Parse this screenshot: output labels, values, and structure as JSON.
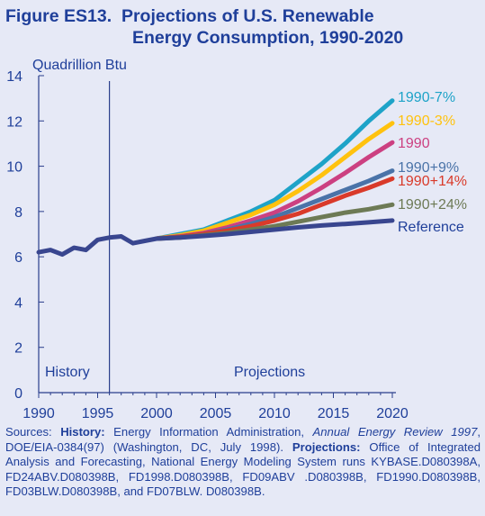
{
  "figure": {
    "title_line1": "Figure ES13.  Projections of U.S. Renewable",
    "title_line2": "Energy Consumption, 1990-2020"
  },
  "colors": {
    "background": "#e6e9f6",
    "axis": "#2a3e8c",
    "text": "#1f3f9a"
  },
  "chart_data": {
    "type": "line",
    "ylabel": "Quadrillion Btu",
    "xlim": [
      1990,
      2020
    ],
    "ylim": [
      0,
      14
    ],
    "x_ticks": [
      1990,
      1995,
      2000,
      2005,
      2010,
      2015,
      2020
    ],
    "y_ticks": [
      0,
      2,
      4,
      6,
      8,
      10,
      12,
      14
    ],
    "grid": false,
    "divider_year": 1996,
    "region_labels": {
      "history": "History",
      "projections": "Projections"
    },
    "history": {
      "x": [
        1990,
        1991,
        1992,
        1993,
        1994,
        1995,
        1996,
        1997,
        1998,
        1999,
        2000
      ],
      "y": [
        6.2,
        6.3,
        6.1,
        6.4,
        6.3,
        6.75,
        6.85,
        6.9,
        6.6,
        6.7,
        6.8
      ]
    },
    "series": [
      {
        "name": "1990-7%",
        "color": "#1ea3c8",
        "x": [
          2000,
          2002,
          2004,
          2006,
          2008,
          2010,
          2012,
          2014,
          2016,
          2018,
          2020
        ],
        "y": [
          6.8,
          7.0,
          7.2,
          7.6,
          8.0,
          8.5,
          9.3,
          10.1,
          11.0,
          12.0,
          12.9
        ]
      },
      {
        "name": "1990-3%",
        "color": "#ffc20e",
        "x": [
          2000,
          2002,
          2004,
          2006,
          2008,
          2010,
          2012,
          2014,
          2016,
          2018,
          2020
        ],
        "y": [
          6.8,
          6.95,
          7.15,
          7.5,
          7.85,
          8.3,
          8.9,
          9.6,
          10.4,
          11.2,
          11.9
        ]
      },
      {
        "name": "1990",
        "color": "#cc4081",
        "x": [
          2000,
          2002,
          2004,
          2006,
          2008,
          2010,
          2012,
          2014,
          2016,
          2018,
          2020
        ],
        "y": [
          6.8,
          6.9,
          7.05,
          7.3,
          7.6,
          7.95,
          8.45,
          9.05,
          9.7,
          10.4,
          11.05
        ]
      },
      {
        "name": "1990+9%",
        "color": "#4a73a8",
        "x": [
          2000,
          2002,
          2004,
          2006,
          2008,
          2010,
          2012,
          2014,
          2016,
          2018,
          2020
        ],
        "y": [
          6.8,
          6.88,
          7.0,
          7.2,
          7.45,
          7.75,
          8.15,
          8.55,
          8.95,
          9.35,
          9.8
        ]
      },
      {
        "name": "1990+14%",
        "color": "#d93a2a",
        "x": [
          2000,
          2002,
          2004,
          2006,
          2008,
          2010,
          2012,
          2014,
          2016,
          2018,
          2020
        ],
        "y": [
          6.8,
          6.88,
          7.0,
          7.15,
          7.35,
          7.6,
          7.9,
          8.3,
          8.7,
          9.05,
          9.45
        ]
      },
      {
        "name": "1990+24%",
        "color": "#6d7a55",
        "x": [
          2000,
          2002,
          2004,
          2006,
          2008,
          2010,
          2012,
          2014,
          2016,
          2018,
          2020
        ],
        "y": [
          6.8,
          6.85,
          6.95,
          7.05,
          7.2,
          7.35,
          7.55,
          7.75,
          7.95,
          8.1,
          8.3
        ]
      },
      {
        "name": "Reference",
        "color": "#39468f",
        "x": [
          2000,
          2002,
          2004,
          2006,
          2008,
          2010,
          2012,
          2014,
          2016,
          2018,
          2020
        ],
        "y": [
          6.8,
          6.85,
          6.92,
          7.0,
          7.1,
          7.2,
          7.3,
          7.38,
          7.45,
          7.52,
          7.6
        ]
      }
    ]
  },
  "sources": {
    "prefix": "Sources: ",
    "history_label": "History:",
    "history_text1": " Energy Information Administration, ",
    "history_italic": "Annual Energy Review 1997",
    "history_text2": ", DOE/EIA-0384(97) (Washington, DC, July 1998). ",
    "projections_label": "Projections:",
    "projections_text": " Office of Integrated Analysis and Forecasting, National Energy Modeling System runs KYBASE.D080398A, FD24ABV.D080398B, FD1998.D080398B, FD09ABV .D080398B, FD1990.D080398B, FD03BLW.D080398B, and FD07BLW. D080398B."
  }
}
